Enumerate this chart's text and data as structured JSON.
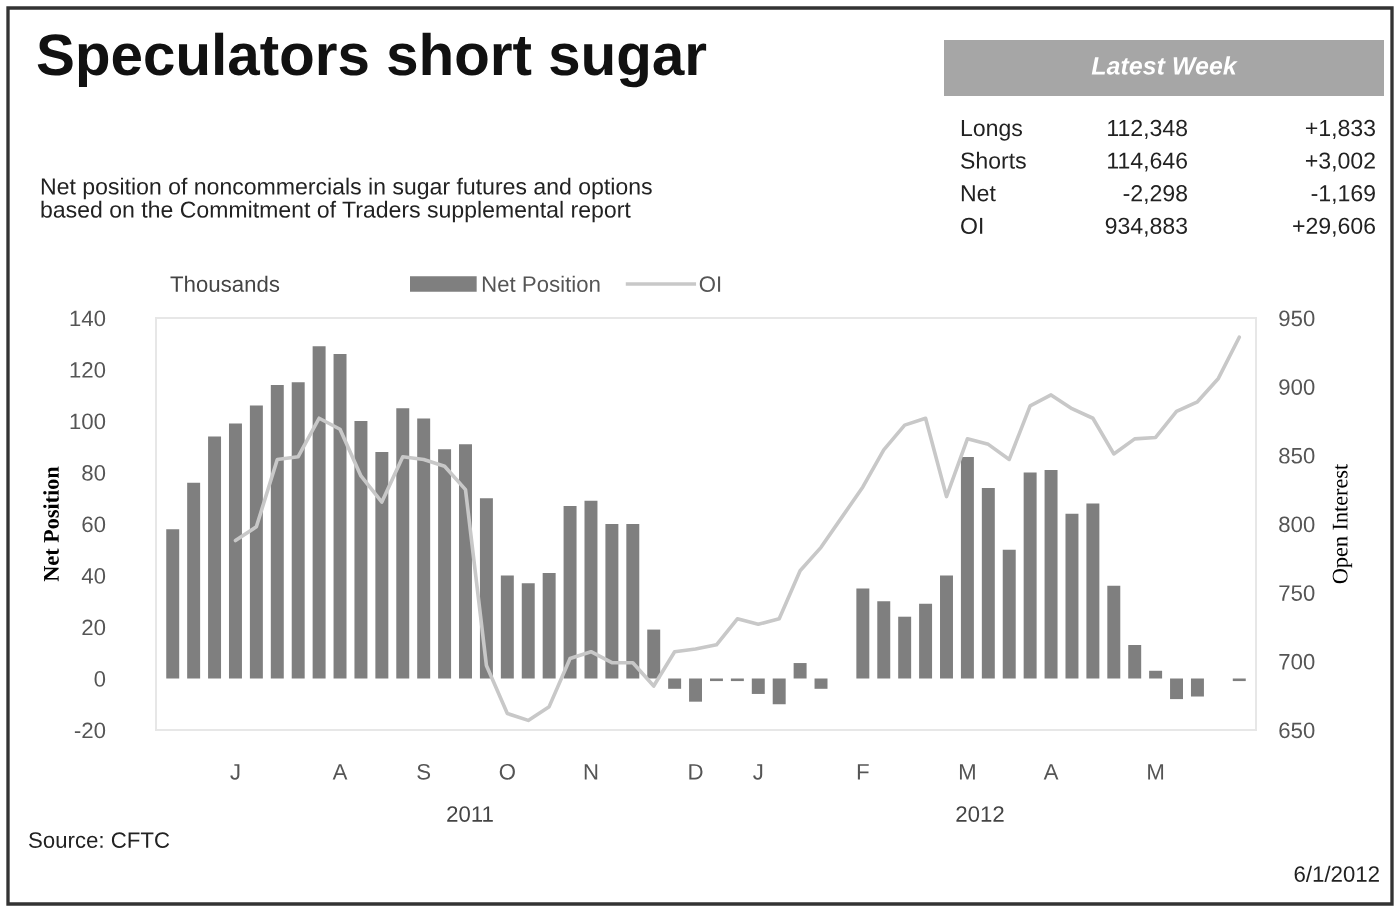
{
  "chart_data": [
    {
      "type": "bar",
      "title": "Speculators short sugar",
      "subtitle": "Net position of noncommercials in sugar futures and options\nbased on the Commitment of Traders supplemental report",
      "ylabel": "Net Position",
      "y2label": "Open Interest",
      "categories": [
        null,
        null,
        null,
        "J",
        null,
        null,
        null,
        null,
        "A",
        null,
        null,
        null,
        "S",
        null,
        null,
        null,
        "O",
        null,
        null,
        null,
        "N",
        null,
        null,
        null,
        null,
        "D",
        null,
        null,
        "J",
        null,
        null,
        null,
        null,
        "F",
        null,
        null,
        null,
        null,
        "M",
        null,
        null,
        null,
        "A",
        null,
        null,
        null,
        null,
        "M",
        null,
        null,
        null,
        null
      ],
      "series": [
        {
          "name": "Net Position",
          "type": "bar",
          "color": "#7f7f7f",
          "values": [
            58,
            76,
            94,
            99,
            106,
            114,
            115,
            129,
            126,
            100,
            88,
            105,
            101,
            89,
            91,
            70,
            40,
            37,
            41,
            67,
            69,
            60,
            60,
            19,
            -4,
            -9,
            -1,
            -1,
            -6,
            -10,
            6,
            -4,
            0,
            35,
            30,
            24,
            29,
            40,
            86,
            74,
            50,
            80,
            81,
            64,
            68,
            36,
            13,
            3,
            -8,
            -7,
            0,
            -1
          ]
        },
        {
          "name": "OI",
          "type": "line",
          "axis": "y2",
          "color": "#c8c8c8",
          "values": [
            null,
            null,
            null,
            788,
            798,
            847,
            849,
            877,
            869,
            835,
            816,
            849,
            847,
            842,
            825,
            697,
            662,
            657,
            667,
            702,
            707,
            699,
            699,
            682,
            707,
            709,
            712,
            731,
            727,
            731,
            766,
            783,
            805,
            827,
            854,
            872,
            877,
            820,
            862,
            858,
            847,
            886,
            894,
            884,
            877,
            851,
            862,
            863,
            882,
            889,
            906,
            936
          ]
        }
      ],
      "ylim": [
        -20,
        140
      ],
      "yticks": [
        -20,
        0,
        20,
        40,
        60,
        80,
        100,
        120,
        140
      ],
      "y2lim": [
        650,
        950
      ],
      "y2ticks": [
        650,
        700,
        750,
        800,
        850,
        900,
        950
      ],
      "grid": false,
      "legend": "top left",
      "annotations": [
        "Thousands",
        "2011",
        "2012",
        "Source: CFTC",
        "6/1/2012"
      ]
    },
    {
      "type": "other",
      "title": "Latest Week",
      "annotations": [
        "Longs",
        "112,348",
        "+1,833",
        "Shorts",
        "114,646",
        "+3,002",
        "Net",
        "-2,298",
        "-1,169",
        "OI",
        "934,883",
        "+29,606"
      ]
    }
  ]
}
